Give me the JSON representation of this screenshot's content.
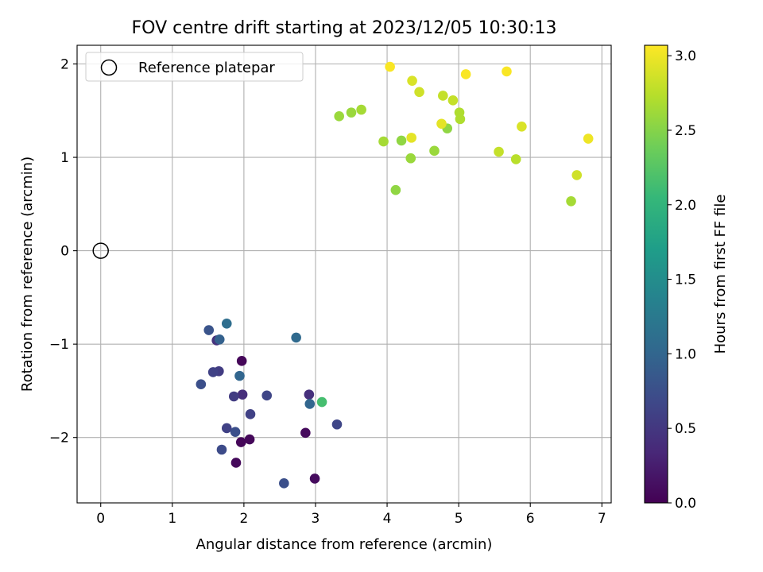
{
  "chart_data": {
    "type": "scatter",
    "title": "FOV centre drift starting at 2023/12/05 10:30:13",
    "xlabel": "Angular distance from reference (arcmin)",
    "ylabel": "Rotation from reference (arcmin)",
    "xlim": [
      -0.33,
      7.13
    ],
    "ylim": [
      -2.7,
      2.2
    ],
    "xticks": [
      0,
      1,
      2,
      3,
      4,
      5,
      6,
      7
    ],
    "xtick_labels": [
      "0",
      "1",
      "2",
      "3",
      "4",
      "5",
      "6",
      "7"
    ],
    "yticks": [
      -2,
      -1,
      0,
      1,
      2
    ],
    "ytick_labels": [
      "−2",
      "−1",
      "0",
      "1",
      "2"
    ],
    "grid": true,
    "legend": {
      "position": "upper-left",
      "entries": [
        {
          "label": "Reference platepar",
          "marker": "open-circle",
          "x": 0,
          "y": 0
        }
      ]
    },
    "colorbar": {
      "label": "Hours from first FF file",
      "colormap": "viridis",
      "range": [
        0.0,
        3.07
      ],
      "ticks": [
        0.0,
        0.5,
        1.0,
        1.5,
        2.0,
        2.5,
        3.0
      ],
      "tick_labels": [
        "0.0",
        "0.5",
        "1.0",
        "1.5",
        "2.0",
        "2.5",
        "3.0"
      ]
    },
    "points": [
      {
        "x": 1.97,
        "y": -1.18,
        "c": 0.05
      },
      {
        "x": 1.96,
        "y": -2.05,
        "c": 0.05
      },
      {
        "x": 2.08,
        "y": -2.02,
        "c": 0.06
      },
      {
        "x": 1.89,
        "y": -2.27,
        "c": 0.07
      },
      {
        "x": 2.86,
        "y": -1.95,
        "c": 0.08
      },
      {
        "x": 2.99,
        "y": -2.44,
        "c": 0.09
      },
      {
        "x": 1.98,
        "y": -1.54,
        "c": 0.4
      },
      {
        "x": 2.91,
        "y": -1.54,
        "c": 0.42
      },
      {
        "x": 1.62,
        "y": -0.96,
        "c": 0.45
      },
      {
        "x": 1.86,
        "y": -1.56,
        "c": 0.55
      },
      {
        "x": 1.65,
        "y": -1.29,
        "c": 0.55
      },
      {
        "x": 1.57,
        "y": -1.3,
        "c": 0.6
      },
      {
        "x": 1.76,
        "y": -1.9,
        "c": 0.6
      },
      {
        "x": 2.09,
        "y": -1.75,
        "c": 0.6
      },
      {
        "x": 2.32,
        "y": -1.55,
        "c": 0.65
      },
      {
        "x": 3.3,
        "y": -1.86,
        "c": 0.65
      },
      {
        "x": 1.69,
        "y": -2.13,
        "c": 0.7
      },
      {
        "x": 1.88,
        "y": -1.94,
        "c": 0.75
      },
      {
        "x": 2.56,
        "y": -2.49,
        "c": 0.75
      },
      {
        "x": 1.4,
        "y": -1.43,
        "c": 0.75
      },
      {
        "x": 1.51,
        "y": -0.85,
        "c": 0.8
      },
      {
        "x": 1.66,
        "y": -0.95,
        "c": 0.95
      },
      {
        "x": 1.94,
        "y": -1.34,
        "c": 1.0
      },
      {
        "x": 2.92,
        "y": -1.64,
        "c": 1.0
      },
      {
        "x": 2.73,
        "y": -0.93,
        "c": 1.05
      },
      {
        "x": 1.76,
        "y": -0.78,
        "c": 1.1
      },
      {
        "x": 3.09,
        "y": -1.62,
        "c": 2.15
      },
      {
        "x": 3.33,
        "y": 1.44,
        "c": 2.6
      },
      {
        "x": 3.5,
        "y": 1.48,
        "c": 2.6
      },
      {
        "x": 3.64,
        "y": 1.51,
        "c": 2.65
      },
      {
        "x": 3.95,
        "y": 1.17,
        "c": 2.65
      },
      {
        "x": 4.12,
        "y": 0.65,
        "c": 2.55
      },
      {
        "x": 4.2,
        "y": 1.18,
        "c": 2.55
      },
      {
        "x": 4.33,
        "y": 0.99,
        "c": 2.6
      },
      {
        "x": 4.66,
        "y": 1.07,
        "c": 2.6
      },
      {
        "x": 4.84,
        "y": 1.31,
        "c": 2.55
      },
      {
        "x": 5.01,
        "y": 1.48,
        "c": 2.7
      },
      {
        "x": 5.02,
        "y": 1.41,
        "c": 2.7
      },
      {
        "x": 4.78,
        "y": 1.66,
        "c": 2.8
      },
      {
        "x": 4.92,
        "y": 1.61,
        "c": 2.8
      },
      {
        "x": 4.45,
        "y": 1.7,
        "c": 2.85
      },
      {
        "x": 4.35,
        "y": 1.82,
        "c": 2.9
      },
      {
        "x": 4.34,
        "y": 1.21,
        "c": 2.95
      },
      {
        "x": 4.76,
        "y": 1.36,
        "c": 2.95
      },
      {
        "x": 4.04,
        "y": 1.97,
        "c": 3.05
      },
      {
        "x": 5.1,
        "y": 1.89,
        "c": 3.05
      },
      {
        "x": 5.67,
        "y": 1.92,
        "c": 3.05
      },
      {
        "x": 5.56,
        "y": 1.06,
        "c": 2.8
      },
      {
        "x": 5.8,
        "y": 0.98,
        "c": 2.75
      },
      {
        "x": 5.88,
        "y": 1.33,
        "c": 2.9
      },
      {
        "x": 6.81,
        "y": 1.2,
        "c": 3.0
      },
      {
        "x": 6.65,
        "y": 0.81,
        "c": 2.85
      },
      {
        "x": 6.57,
        "y": 0.53,
        "c": 2.65
      }
    ]
  }
}
